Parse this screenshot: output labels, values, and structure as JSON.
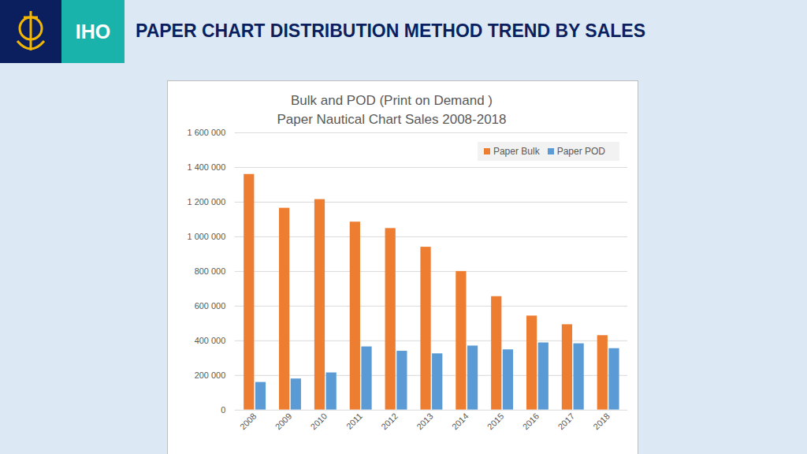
{
  "header": {
    "org": "IHO",
    "title": "PAPER CHART DISTRIBUTION METHOD TREND BY SALES"
  },
  "chart_data": {
    "type": "bar",
    "title": "Bulk and POD (Print on Demand )",
    "subtitle": "Paper Nautical Chart Sales 2008-2018",
    "categories": [
      "2008",
      "2009",
      "2010",
      "2011",
      "2012",
      "2013",
      "2014",
      "2015",
      "2016",
      "2017",
      "2018"
    ],
    "series": [
      {
        "name": "Paper Bulk",
        "color": "#ed7d31",
        "values": [
          1360000,
          1165000,
          1215000,
          1085000,
          1048000,
          940000,
          800000,
          655000,
          543000,
          493000,
          430000
        ]
      },
      {
        "name": "Paper POD",
        "color": "#5b9bd5",
        "values": [
          160000,
          180000,
          215000,
          365000,
          340000,
          325000,
          370000,
          348000,
          388000,
          383000,
          355000
        ]
      }
    ],
    "ylim": [
      0,
      1600000
    ],
    "yticks": [
      0,
      {
        "value": 200000,
        "label": "200 000"
      },
      {
        "value": 400000,
        "label": "400 000"
      },
      {
        "value": 600000,
        "label": "600 000"
      },
      {
        "value": 800000,
        "label": "800 000"
      },
      {
        "value": 1000000,
        "label": "1 000 000"
      },
      {
        "value": 1200000,
        "label": "1 200 000"
      },
      {
        "value": 1400000,
        "label": "1 400 000"
      },
      {
        "value": 1600000,
        "label": "1 600 000"
      }
    ],
    "grid": true,
    "legend": "top-right"
  }
}
